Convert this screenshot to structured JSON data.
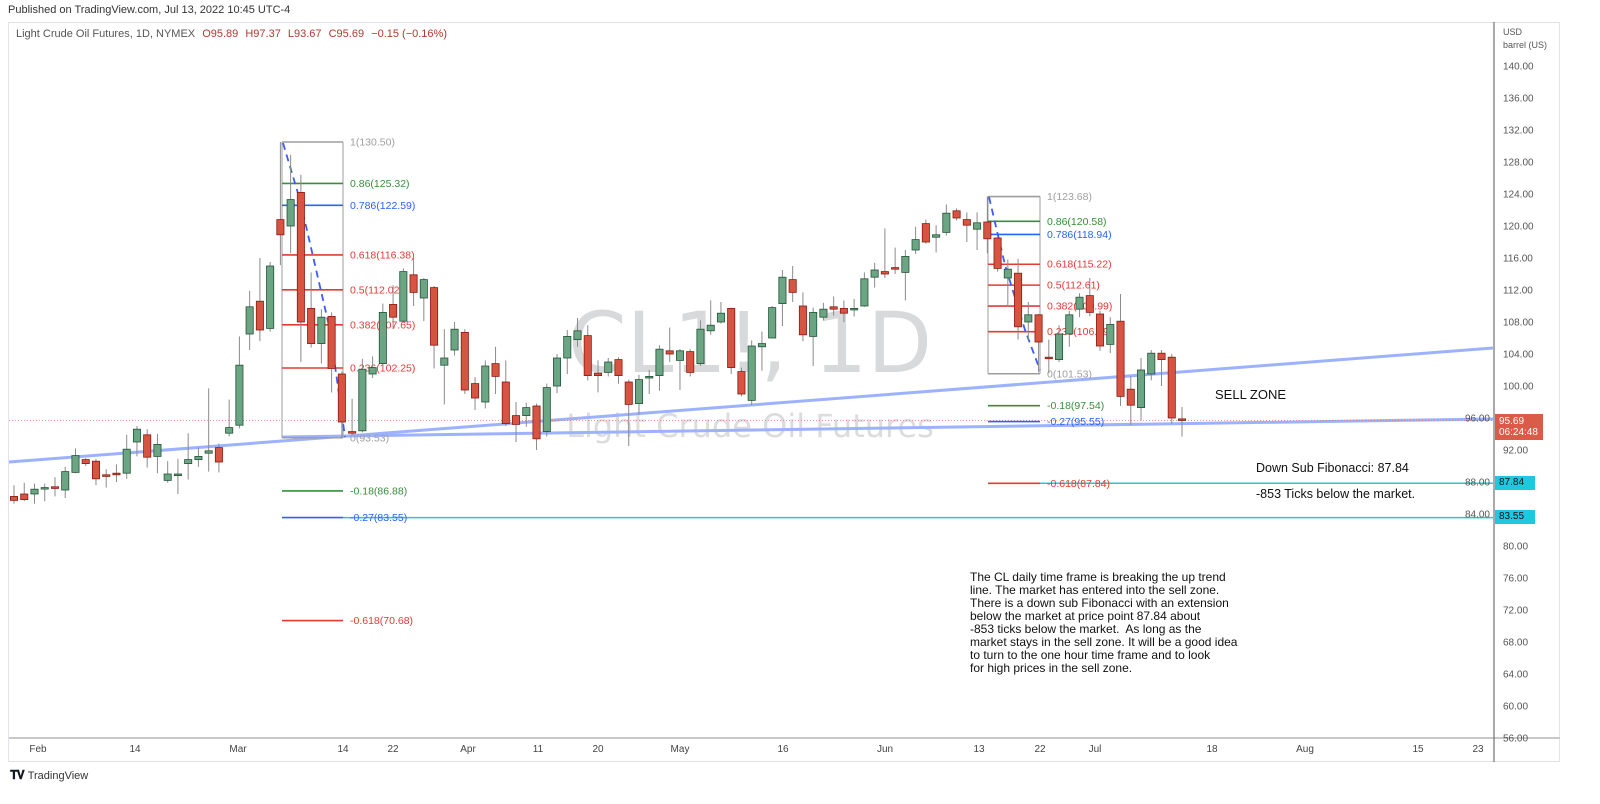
{
  "header": {
    "published": "Published on TradingView.com, Jul 13, 2022 10:45 UTC-4",
    "symbol_desc": "Light Crude Oil Futures, 1D, NYMEX",
    "open": "O95.89",
    "high": "H97.37",
    "low": "L93.67",
    "close": "C95.69",
    "change": "−0.15 (−0.16%)"
  },
  "watermark": {
    "symbol": "CL1!, 1D",
    "name": "Light Crude Oil Futures"
  },
  "price_axis": {
    "currency": "USD",
    "unit": "barrel (US)",
    "ticks": [
      "140.00",
      "136.00",
      "132.00",
      "128.00",
      "124.00",
      "120.00",
      "116.00",
      "112.00",
      "108.00",
      "104.00",
      "100.00",
      "96.00",
      "92.00",
      "88.00",
      "84.00",
      "80.00",
      "76.00",
      "72.00",
      "68.00",
      "64.00",
      "60.00",
      "56.00"
    ],
    "current_price": "95.69",
    "countdown": "06:24:48",
    "price_tags": [
      "87.84",
      "83.55"
    ]
  },
  "time_axis": {
    "labels": [
      "Feb",
      "14",
      "Mar",
      "14",
      "22",
      "Apr",
      "11",
      "20",
      "May",
      "16",
      "Jun",
      "13",
      "22",
      "Jul",
      "18",
      "Aug",
      "15",
      "23"
    ]
  },
  "chart_data": {
    "type": "candlestick",
    "title": "Light Crude Oil Futures, 1D, NYMEX",
    "ylim": [
      56,
      142
    ],
    "grid": false,
    "colors": {
      "up": "#6ba583",
      "up_border": "#225437",
      "down": "#d75442",
      "down_border": "#8b1a10",
      "wick": "#8a8a8a",
      "trendline": "#9db2ff",
      "target": "#1ec8e0"
    },
    "candles_ohlc": [
      [
        86.2,
        87.6,
        85.3,
        85.7
      ],
      [
        86.5,
        87.9,
        85.6,
        85.8
      ],
      [
        86.5,
        87.8,
        85.3,
        87.1
      ],
      [
        87.2,
        87.8,
        85.6,
        87.3
      ],
      [
        87.4,
        88.6,
        86.2,
        87.2
      ],
      [
        87.0,
        89.9,
        86.0,
        89.3
      ],
      [
        89.2,
        92.2,
        89.1,
        91.3
      ],
      [
        90.8,
        91.0,
        90.0,
        90.3
      ],
      [
        90.6,
        90.9,
        87.6,
        88.4
      ],
      [
        88.9,
        89.6,
        87.3,
        88.7
      ],
      [
        89.1,
        90.2,
        88.0,
        88.9
      ],
      [
        89.1,
        93.9,
        88.4,
        92.1
      ],
      [
        93.0,
        95.0,
        91.2,
        94.6
      ],
      [
        93.9,
        94.6,
        89.8,
        91.1
      ],
      [
        91.2,
        94.0,
        89.1,
        92.7
      ],
      [
        88.2,
        90.6,
        87.9,
        89.0
      ],
      [
        88.8,
        90.9,
        86.5,
        89.0
      ],
      [
        90.3,
        94.1,
        88.3,
        90.8
      ],
      [
        90.8,
        92.3,
        89.9,
        91.2
      ],
      [
        91.6,
        99.7,
        89.3,
        91.9
      ],
      [
        92.3,
        92.8,
        89.2,
        90.5
      ],
      [
        94.1,
        98.3,
        93.7,
        94.8
      ],
      [
        95.1,
        106.2,
        94.7,
        102.6
      ],
      [
        106.5,
        111.9,
        104.5,
        109.9
      ],
      [
        110.6,
        116.0,
        105.6,
        107.0
      ],
      [
        107.2,
        115.5,
        106.8,
        115.0
      ],
      [
        120.8,
        130.5,
        115.1,
        118.9
      ],
      [
        120.0,
        128.9,
        116.6,
        123.3
      ],
      [
        124.2,
        126.4,
        103.0,
        108.0
      ],
      [
        109.7,
        114.2,
        104.8,
        105.3
      ],
      [
        105.3,
        109.6,
        102.8,
        108.6
      ],
      [
        108.7,
        109.2,
        99.2,
        102.2
      ],
      [
        101.5,
        101.8,
        93.5,
        95.5
      ],
      [
        94.3,
        98.4,
        93.9,
        94.1
      ],
      [
        94.4,
        103.4,
        94.2,
        102.1
      ],
      [
        101.5,
        103.7,
        101.0,
        102.3
      ],
      [
        102.8,
        110.3,
        102.4,
        109.2
      ],
      [
        110.2,
        112.6,
        107.1,
        108.6
      ],
      [
        108.1,
        114.7,
        107.9,
        114.3
      ],
      [
        113.9,
        116.0,
        110.0,
        111.7
      ],
      [
        111.0,
        113.5,
        108.1,
        113.3
      ],
      [
        112.3,
        112.5,
        102.2,
        105.1
      ],
      [
        102.6,
        107.1,
        97.7,
        103.5
      ],
      [
        104.5,
        108.0,
        103.8,
        107.1
      ],
      [
        106.7,
        107.1,
        99.0,
        99.5
      ],
      [
        100.3,
        101.1,
        97.0,
        98.5
      ],
      [
        98.0,
        103.2,
        97.2,
        102.5
      ],
      [
        102.8,
        104.9,
        99.0,
        101.2
      ],
      [
        100.5,
        103.2,
        95.0,
        95.3
      ],
      [
        96.3,
        98.0,
        93.0,
        95.2
      ],
      [
        96.3,
        97.9,
        94.9,
        97.3
      ],
      [
        97.5,
        97.8,
        92.0,
        93.4
      ],
      [
        94.3,
        100.3,
        93.7,
        99.8
      ],
      [
        100.0,
        104.0,
        99.1,
        103.5
      ],
      [
        103.5,
        107.0,
        101.5,
        106.2
      ],
      [
        105.8,
        108.5,
        104.9,
        106.9
      ],
      [
        106.3,
        107.6,
        100.7,
        101.3
      ],
      [
        101.6,
        103.2,
        99.2,
        101.3
      ],
      [
        101.7,
        103.5,
        101.2,
        103.0
      ],
      [
        103.3,
        103.6,
        100.3,
        101.3
      ],
      [
        100.5,
        100.8,
        92.5,
        97.7
      ],
      [
        97.8,
        101.4,
        96.4,
        100.8
      ],
      [
        101.0,
        102.0,
        99.0,
        101.2
      ],
      [
        101.3,
        105.1,
        99.4,
        104.6
      ],
      [
        104.4,
        107.3,
        103.0,
        104.0
      ],
      [
        103.2,
        104.6,
        99.5,
        104.4
      ],
      [
        104.3,
        104.6,
        101.2,
        101.7
      ],
      [
        102.8,
        108.2,
        102.5,
        107.1
      ],
      [
        106.9,
        110.7,
        106.4,
        107.6
      ],
      [
        108.0,
        110.5,
        107.8,
        109.1
      ],
      [
        109.7,
        109.8,
        101.5,
        102.3
      ],
      [
        101.8,
        102.3,
        98.7,
        99.0
      ],
      [
        98.2,
        105.7,
        97.6,
        105.0
      ],
      [
        104.9,
        106.8,
        101.9,
        105.3
      ],
      [
        106.0,
        110.0,
        106.0,
        109.8
      ],
      [
        110.3,
        114.5,
        107.5,
        113.6
      ],
      [
        113.3,
        115.0,
        110.5,
        111.7
      ],
      [
        110.0,
        111.7,
        105.6,
        106.4
      ],
      [
        106.2,
        109.8,
        102.5,
        109.2
      ],
      [
        108.6,
        110.4,
        108.2,
        109.6
      ],
      [
        109.9,
        111.2,
        108.8,
        109.6
      ],
      [
        109.7,
        110.7,
        108.0,
        109.1
      ],
      [
        109.7,
        110.9,
        108.7,
        109.7
      ],
      [
        110.0,
        114.2,
        109.9,
        113.4
      ],
      [
        113.6,
        115.4,
        112.3,
        114.5
      ],
      [
        114.3,
        119.7,
        113.5,
        114.0
      ],
      [
        114.8,
        117.3,
        114.0,
        114.6
      ],
      [
        114.2,
        117.0,
        110.7,
        116.2
      ],
      [
        117.0,
        119.9,
        116.5,
        118.3
      ],
      [
        120.3,
        120.8,
        117.8,
        118.0
      ],
      [
        118.6,
        120.1,
        116.7,
        118.9
      ],
      [
        119.2,
        122.7,
        118.8,
        121.6
      ],
      [
        121.9,
        122.2,
        120.7,
        121.0
      ],
      [
        120.8,
        121.7,
        118.0,
        120.1
      ],
      [
        119.6,
        121.7,
        117.0,
        120.4
      ],
      [
        120.5,
        123.7,
        116.6,
        118.4
      ],
      [
        118.5,
        118.6,
        114.3,
        114.7
      ],
      [
        113.5,
        115.8,
        109.9,
        114.6
      ],
      [
        114.1,
        115.9,
        105.8,
        107.4
      ],
      [
        108.0,
        110.5,
        105.8,
        108.9
      ],
      [
        108.9,
        109.0,
        101.7,
        105.5
      ],
      [
        103.6,
        105.8,
        101.6,
        103.5
      ],
      [
        103.3,
        107.6,
        103.0,
        106.5
      ],
      [
        106.5,
        109.4,
        104.9,
        108.9
      ],
      [
        109.6,
        111.6,
        108.6,
        111.1
      ],
      [
        111.3,
        113.5,
        108.7,
        109.2
      ],
      [
        109.0,
        109.4,
        104.4,
        105.0
      ],
      [
        105.2,
        108.6,
        104.1,
        107.7
      ],
      [
        108.1,
        111.5,
        97.5,
        98.7
      ],
      [
        99.6,
        101.2,
        95.1,
        97.6
      ],
      [
        97.3,
        103.5,
        95.7,
        102.0
      ],
      [
        101.5,
        104.5,
        100.7,
        104.1
      ],
      [
        104.1,
        104.5,
        100.0,
        103.3
      ],
      [
        103.6,
        104.0,
        95.3,
        96.0
      ],
      [
        95.89,
        97.37,
        93.67,
        95.69
      ]
    ],
    "fib_retracements": [
      {
        "levels": [
          {
            "text": "1(130.50)",
            "price": 130.5,
            "color": "#9e9e9e"
          },
          {
            "text": "0.86(125.32)",
            "price": 125.32,
            "color": "#388e3c"
          },
          {
            "text": "0.786(122.59)",
            "price": 122.59,
            "color": "#2962ff"
          },
          {
            "text": "0.618(116.38)",
            "price": 116.38,
            "color": "#e53935"
          },
          {
            "text": "0.5(112.02)",
            "price": 112.02,
            "color": "#e53935"
          },
          {
            "text": "0.382(107.65)",
            "price": 107.65,
            "color": "#e53935"
          },
          {
            "text": "0.236(102.25)",
            "price": 102.25,
            "color": "#e53935"
          },
          {
            "text": "0(93.53)",
            "price": 93.53,
            "color": "#9e9e9e"
          },
          {
            "text": "-0.18(86.88)",
            "price": 86.88,
            "color": "#388e3c"
          },
          {
            "text": "-0.27(83.55)",
            "price": 83.55,
            "color": "#2962ff"
          },
          {
            "text": "-0.618(70.68)",
            "price": 70.68,
            "color": "#e53935"
          }
        ]
      },
      {
        "levels": [
          {
            "text": "1(123.68)",
            "price": 123.68,
            "color": "#9e9e9e"
          },
          {
            "text": "0.86(120.58)",
            "price": 120.58,
            "color": "#388e3c"
          },
          {
            "text": "0.786(118.94)",
            "price": 118.94,
            "color": "#2962ff"
          },
          {
            "text": "0.618(115.22)",
            "price": 115.22,
            "color": "#e53935"
          },
          {
            "text": "0.5(112.61)",
            "price": 112.61,
            "color": "#e53935"
          },
          {
            "text": "0.382(109.99)",
            "price": 109.99,
            "color": "#e53935"
          },
          {
            "text": "0.236(106.79)",
            "price": 106.79,
            "color": "#e53935"
          },
          {
            "text": "0(101.53)",
            "price": 101.53,
            "color": "#9e9e9e"
          },
          {
            "text": "-0.18(97.54)",
            "price": 97.54,
            "color": "#388e3c"
          },
          {
            "text": "-0.27(95.55)",
            "price": 95.55,
            "color": "#2962ff"
          },
          {
            "text": "-0.618(87.84)",
            "price": 87.84,
            "color": "#e53935"
          }
        ]
      }
    ],
    "horizontal_levels": [
      87.84,
      83.55
    ]
  },
  "annotations": {
    "sell_zone": "SELL ZONE",
    "down_sub_fib": "Down Sub Fibonacci: 87.84",
    "ticks_below": "-853 Ticks below the market.",
    "note": "The CL daily time frame is breaking the up trend\nline. The market has entered into the sell zone.\nThere is a down sub Fibonacci with an extension\nbelow the market at price point 87.84 about\n-853 ticks below the market.  As long as the\nmarket stays in the sell zone. It will be a good idea\nto turn to the one hour time frame and to look\nfor high prices in the sell zone."
  },
  "footer": {
    "logo_text": "TradingView",
    "logo_mark": "17"
  }
}
